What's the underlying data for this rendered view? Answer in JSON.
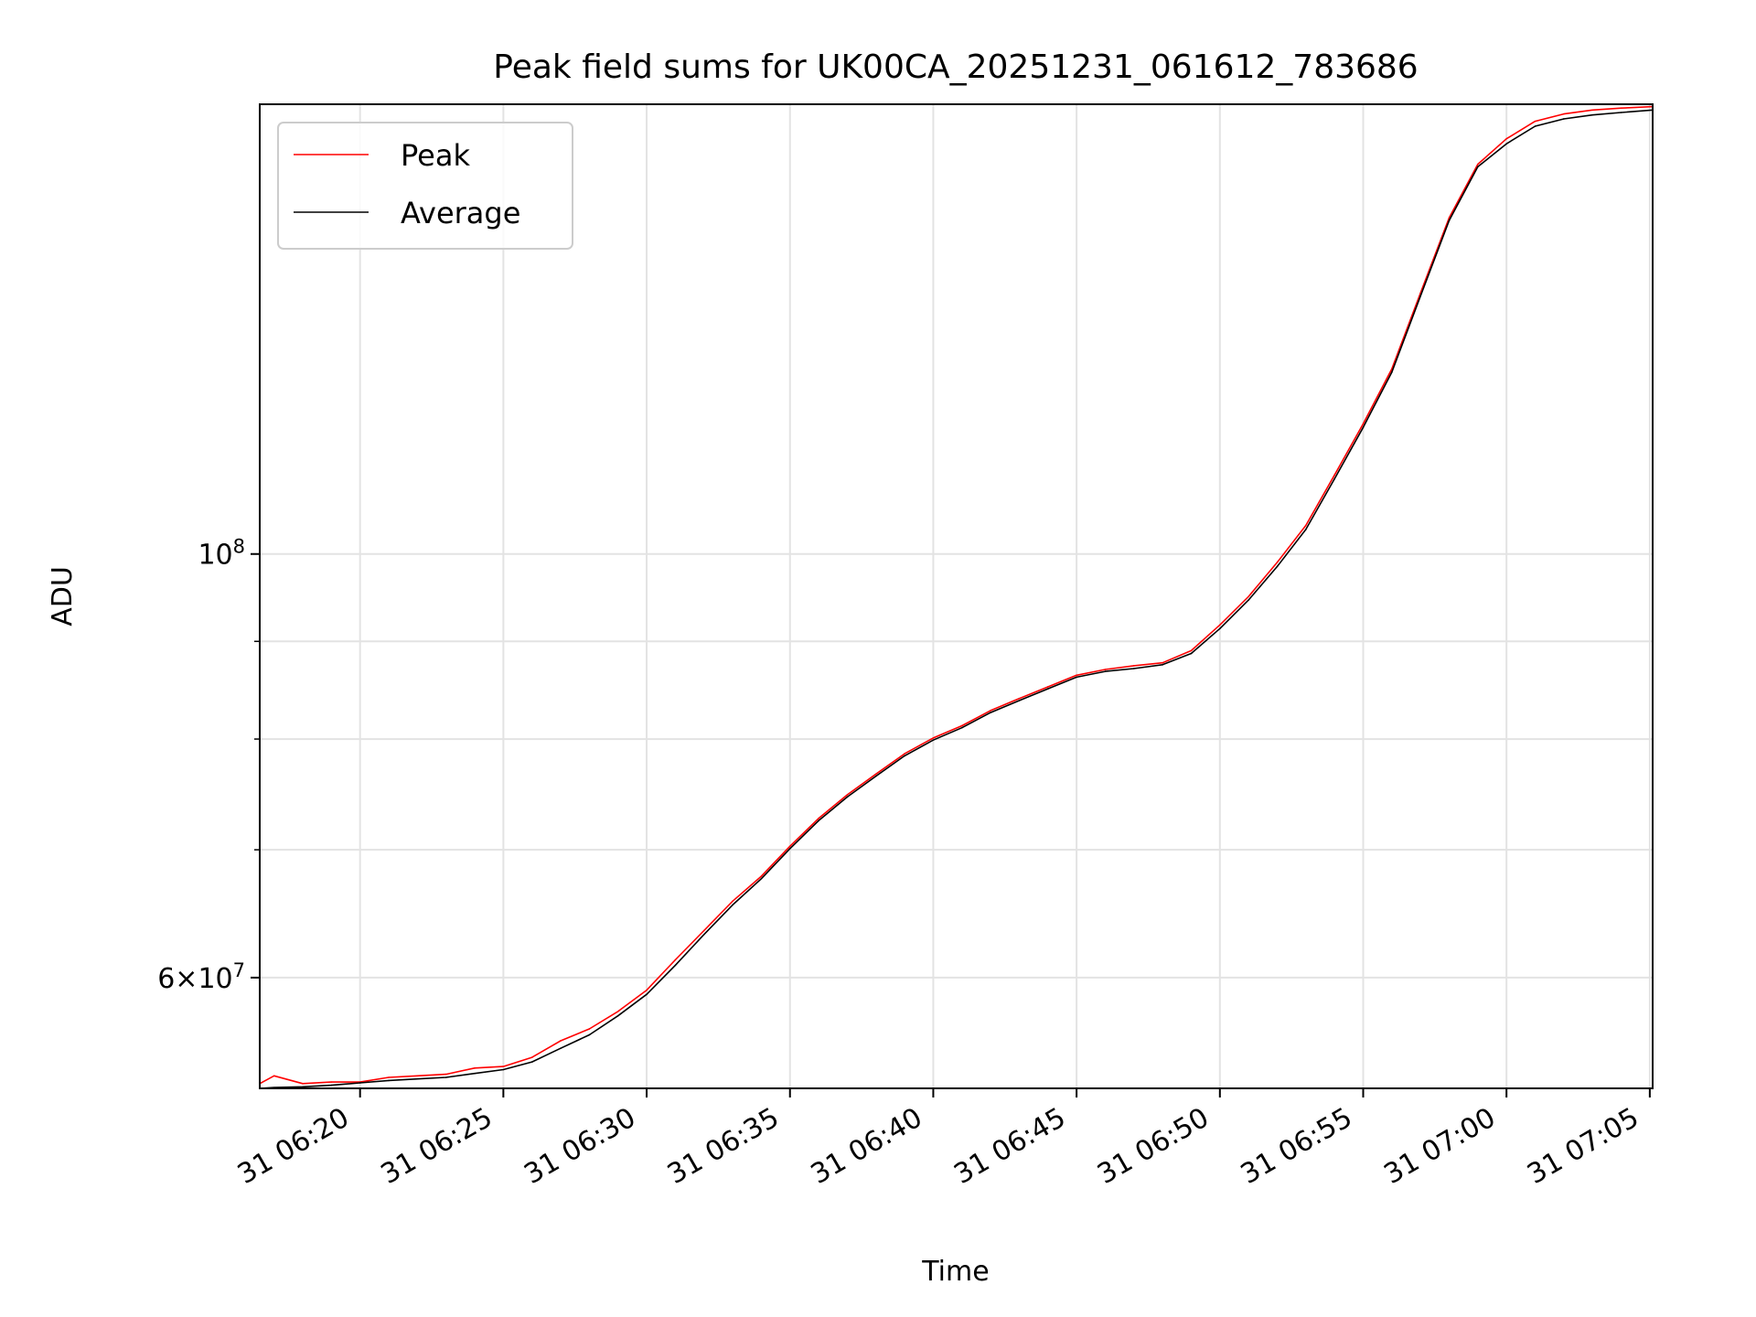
{
  "chart_data": {
    "type": "line",
    "title": "Peak field sums for UK00CA_20251231_061612_783686",
    "xlabel": "Time",
    "ylabel": "ADU",
    "yscale": "log",
    "grid": true,
    "legend_position": "top-left",
    "xlim_minutes": [
      16.5,
      65.1
    ],
    "ylim": [
      52500000,
      172000000
    ],
    "x_ticks": [
      {
        "minute": 20,
        "label": "31 06:20"
      },
      {
        "minute": 25,
        "label": "31 06:25"
      },
      {
        "minute": 30,
        "label": "31 06:30"
      },
      {
        "minute": 35,
        "label": "31 06:35"
      },
      {
        "minute": 40,
        "label": "31 06:40"
      },
      {
        "minute": 45,
        "label": "31 06:45"
      },
      {
        "minute": 50,
        "label": "31 06:50"
      },
      {
        "minute": 55,
        "label": "31 06:55"
      },
      {
        "minute": 60,
        "label": "31 07:00"
      },
      {
        "minute": 65,
        "label": "31 07:05"
      }
    ],
    "y_major_ticks": [
      {
        "value": 60000000,
        "mantissa": "6",
        "times": "×",
        "base": "10",
        "exp": "7"
      },
      {
        "value": 100000000,
        "mantissa": "",
        "times": "",
        "base": "10",
        "exp": "8"
      }
    ],
    "y_minor_ticks": [
      60000000,
      70000000,
      80000000,
      90000000
    ],
    "y_major_gridlines": [
      100000000
    ],
    "x_minutes_note": "x values are minutes after 06:00 on the 31st",
    "series": [
      {
        "name": "Peak",
        "color": "#ff0000",
        "x": [
          16.5,
          17,
          18,
          19,
          20,
          21,
          22,
          23,
          24,
          25,
          26,
          27,
          28,
          29,
          30,
          31,
          32,
          33,
          34,
          35,
          36,
          37,
          38,
          39,
          40,
          41,
          42,
          43,
          44,
          45,
          46,
          47,
          48,
          49,
          50,
          51,
          52,
          53,
          54,
          55,
          56,
          57,
          58,
          59,
          60,
          61,
          62,
          63,
          64,
          65.1
        ],
        "y": [
          52800000,
          53300000,
          52800000,
          52900000,
          52900000,
          53200000,
          53300000,
          53400000,
          53800000,
          53900000,
          54500000,
          55600000,
          56400000,
          57600000,
          59100000,
          61300000,
          63500000,
          65800000,
          67800000,
          70300000,
          72700000,
          74800000,
          76700000,
          78600000,
          80100000,
          81300000,
          82800000,
          84000000,
          85200000,
          86400000,
          87000000,
          87400000,
          87700000,
          89000000,
          91800000,
          95000000,
          99000000,
          103500000,
          110000000,
          117000000,
          125000000,
          137000000,
          150000000,
          160000000,
          165000000,
          168500000,
          170000000,
          170800000,
          171200000,
          171500000
        ]
      },
      {
        "name": "Average",
        "color": "#000000",
        "x": [
          16.5,
          17,
          18,
          19,
          20,
          21,
          22,
          23,
          24,
          25,
          26,
          27,
          28,
          29,
          30,
          31,
          32,
          33,
          34,
          35,
          36,
          37,
          38,
          39,
          40,
          41,
          42,
          43,
          44,
          45,
          46,
          47,
          48,
          49,
          50,
          51,
          52,
          53,
          54,
          55,
          56,
          57,
          58,
          59,
          60,
          61,
          62,
          63,
          64,
          65.1
        ],
        "y": [
          52500000,
          52550000,
          52600000,
          52700000,
          52850000,
          53000000,
          53100000,
          53200000,
          53450000,
          53700000,
          54200000,
          55100000,
          56000000,
          57300000,
          58800000,
          60900000,
          63200000,
          65500000,
          67600000,
          70100000,
          72500000,
          74600000,
          76500000,
          78400000,
          79900000,
          81100000,
          82600000,
          83800000,
          85000000,
          86200000,
          86800000,
          87100000,
          87500000,
          88700000,
          91400000,
          94600000,
          98500000,
          103000000,
          109500000,
          116500000,
          124500000,
          136500000,
          149500000,
          159500000,
          164000000,
          167500000,
          169000000,
          169800000,
          170300000,
          170800000
        ]
      }
    ]
  }
}
